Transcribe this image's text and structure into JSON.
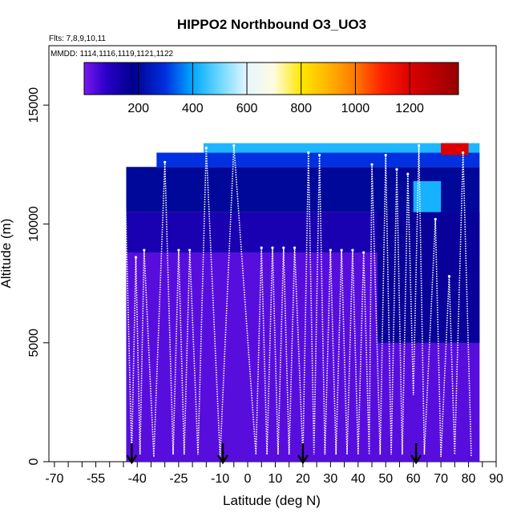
{
  "chart_data": {
    "type": "heatmap",
    "title": "HIPPO2 Northbound O3_UO3",
    "annotations": {
      "flights": "Flts: 7,8,9,10,11",
      "dates": "MMDD: 1114,1116,1119,1121,1122"
    },
    "xlabel": "Latitude (deg N)",
    "ylabel": "Altitude (m)",
    "xlim": [
      -72,
      90
    ],
    "ylim": [
      0,
      17500
    ],
    "x_ticks": [
      "-70",
      "-55",
      "-40",
      "-25",
      "-10",
      "0",
      "10",
      "20",
      "30",
      "40",
      "50",
      "60",
      "70",
      "80",
      "90"
    ],
    "x_tick_values": [
      -70,
      -55,
      -40,
      -25,
      -10,
      0,
      10,
      20,
      30,
      40,
      50,
      60,
      70,
      80,
      90
    ],
    "x_minor_ticks": [
      -65,
      -60,
      -50,
      -45,
      -35,
      -30,
      -20,
      -15,
      -5,
      5,
      15,
      25,
      35,
      45,
      55,
      65,
      75,
      85
    ],
    "y_ticks": [
      "0",
      "5000",
      "10000",
      "15000"
    ],
    "y_tick_values": [
      0,
      5000,
      10000,
      15000
    ],
    "colorbar": {
      "range": [
        0,
        1380
      ],
      "ticks": [
        "200",
        "400",
        "600",
        "800",
        "1000",
        "1200"
      ],
      "tick_values": [
        200,
        400,
        600,
        800,
        1000,
        1200
      ],
      "stops": [
        {
          "v": 0,
          "c": "#7a18ee"
        },
        {
          "v": 80,
          "c": "#2a00c8"
        },
        {
          "v": 180,
          "c": "#00008c"
        },
        {
          "v": 300,
          "c": "#0030e0"
        },
        {
          "v": 400,
          "c": "#00a8ff"
        },
        {
          "v": 500,
          "c": "#6cd8ff"
        },
        {
          "v": 600,
          "c": "#e6f6ff"
        },
        {
          "v": 700,
          "c": "#fffbe0"
        },
        {
          "v": 800,
          "c": "#ffe800"
        },
        {
          "v": 900,
          "c": "#ffb400"
        },
        {
          "v": 1000,
          "c": "#ff7800"
        },
        {
          "v": 1100,
          "c": "#ff2000"
        },
        {
          "v": 1200,
          "c": "#dc0000"
        },
        {
          "v": 1380,
          "c": "#960000"
        }
      ]
    },
    "heatmap_regions": [
      {
        "x": [
          -44,
          84
        ],
        "y": [
          0,
          8800
        ],
        "value": 35
      },
      {
        "x": [
          -44,
          84
        ],
        "y": [
          8800,
          10500
        ],
        "value": 120
      },
      {
        "x": [
          -44,
          84
        ],
        "y": [
          10500,
          12400
        ],
        "value": 200
      },
      {
        "x": [
          -33,
          84
        ],
        "y": [
          12400,
          13000
        ],
        "value": 300
      },
      {
        "x": [
          -16,
          84
        ],
        "y": [
          13000,
          13400
        ],
        "value": 430
      },
      {
        "x": [
          47,
          84
        ],
        "y": [
          5000,
          10500
        ],
        "value": 160
      },
      {
        "x": [
          60,
          70
        ],
        "y": [
          10500,
          11800
        ],
        "value": 420
      },
      {
        "x": [
          70,
          80
        ],
        "y": [
          12900,
          13400
        ],
        "value": 1200
      }
    ],
    "flight_track_peaks": [
      {
        "lat": -44.5,
        "alt": 12100
      },
      {
        "lat": -40.5,
        "alt": 8600
      },
      {
        "lat": -37.5,
        "alt": 8900
      },
      {
        "lat": -30,
        "alt": 12600
      },
      {
        "lat": -25,
        "alt": 8900
      },
      {
        "lat": -21,
        "alt": 8900
      },
      {
        "lat": -15,
        "alt": 13200
      },
      {
        "lat": -5,
        "alt": 13300
      },
      {
        "lat": 5,
        "alt": 9000
      },
      {
        "lat": 9,
        "alt": 9000
      },
      {
        "lat": 13,
        "alt": 9000
      },
      {
        "lat": 17,
        "alt": 9000
      },
      {
        "lat": 22,
        "alt": 13000
      },
      {
        "lat": 26,
        "alt": 12900
      },
      {
        "lat": 30,
        "alt": 8900
      },
      {
        "lat": 34,
        "alt": 8900
      },
      {
        "lat": 38,
        "alt": 8900
      },
      {
        "lat": 42,
        "alt": 8800
      },
      {
        "lat": 45,
        "alt": 12500
      },
      {
        "lat": 50,
        "alt": 12900
      },
      {
        "lat": 54,
        "alt": 12300
      },
      {
        "lat": 58,
        "alt": 12100
      },
      {
        "lat": 62,
        "alt": 13300
      },
      {
        "lat": 68,
        "alt": 10200
      },
      {
        "lat": 73,
        "alt": 7800
      },
      {
        "lat": 78,
        "alt": 13000
      }
    ],
    "flight_track_troughs": [
      {
        "lat": -46,
        "alt": 200
      },
      {
        "lat": -42,
        "alt": 300
      },
      {
        "lat": -39,
        "alt": 300
      },
      {
        "lat": -34,
        "alt": 200
      },
      {
        "lat": -27,
        "alt": 300
      },
      {
        "lat": -23,
        "alt": 300
      },
      {
        "lat": -18,
        "alt": 300
      },
      {
        "lat": -10,
        "alt": 200
      },
      {
        "lat": 3,
        "alt": 300
      },
      {
        "lat": 7,
        "alt": 300
      },
      {
        "lat": 11,
        "alt": 300
      },
      {
        "lat": 15,
        "alt": 300
      },
      {
        "lat": 20,
        "alt": 200
      },
      {
        "lat": 24,
        "alt": 300
      },
      {
        "lat": 28,
        "alt": 300
      },
      {
        "lat": 32,
        "alt": 300
      },
      {
        "lat": 36,
        "alt": 300
      },
      {
        "lat": 40,
        "alt": 300
      },
      {
        "lat": 44,
        "alt": 300
      },
      {
        "lat": 48,
        "alt": 300
      },
      {
        "lat": 52,
        "alt": 300
      },
      {
        "lat": 56,
        "alt": 300
      },
      {
        "lat": 60,
        "alt": 2800
      },
      {
        "lat": 64,
        "alt": 300
      },
      {
        "lat": 70,
        "alt": 200
      },
      {
        "lat": 75,
        "alt": 300
      },
      {
        "lat": 81,
        "alt": 200
      }
    ],
    "arrows_lat": [
      -42,
      -9,
      20,
      61
    ]
  }
}
